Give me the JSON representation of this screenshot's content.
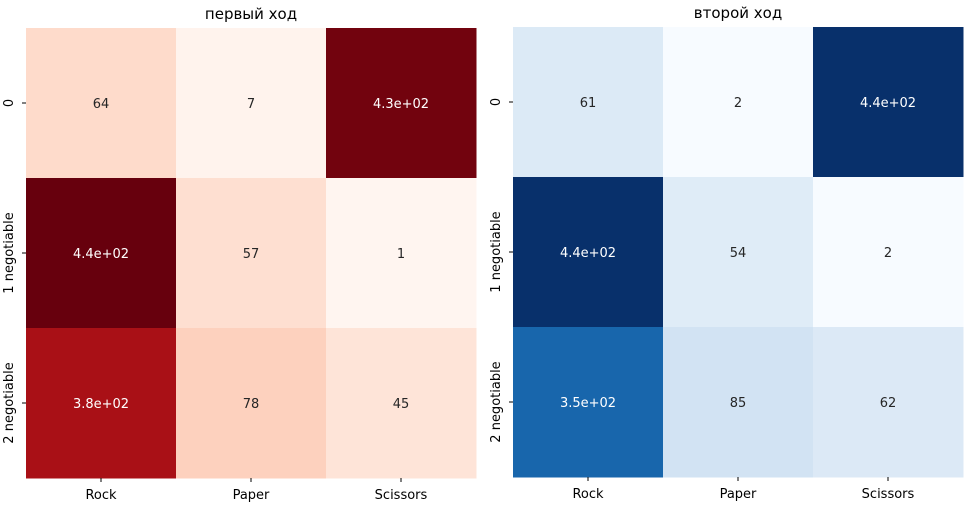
{
  "chart_data": [
    {
      "type": "heatmap",
      "title": "первый ход",
      "colormap": "Reds",
      "x_categories": [
        "Rock",
        "Paper",
        "Scissors"
      ],
      "y_categories": [
        "0",
        "1 negotiable",
        "2 negotiable"
      ],
      "values": [
        [
          64,
          7,
          430
        ],
        [
          440,
          57,
          1
        ],
        [
          380,
          78,
          45
        ]
      ],
      "annotations": [
        [
          "64",
          "7",
          "4.3e+02"
        ],
        [
          "4.4e+02",
          "57",
          "1"
        ],
        [
          "3.8e+02",
          "78",
          "45"
        ]
      ],
      "colorbar": false
    },
    {
      "type": "heatmap",
      "title": "второй ход",
      "colormap": "Blues",
      "x_categories": [
        "Rock",
        "Paper",
        "Scissors"
      ],
      "y_categories": [
        "0",
        "1 negotiable",
        "2 negotiable"
      ],
      "values": [
        [
          61,
          2,
          440
        ],
        [
          440,
          54,
          2
        ],
        [
          350,
          85,
          62
        ]
      ],
      "annotations": [
        [
          "61",
          "2",
          "4.4e+02"
        ],
        [
          "4.4e+02",
          "54",
          "2"
        ],
        [
          "3.5e+02",
          "85",
          "62"
        ]
      ],
      "colorbar": false
    }
  ]
}
